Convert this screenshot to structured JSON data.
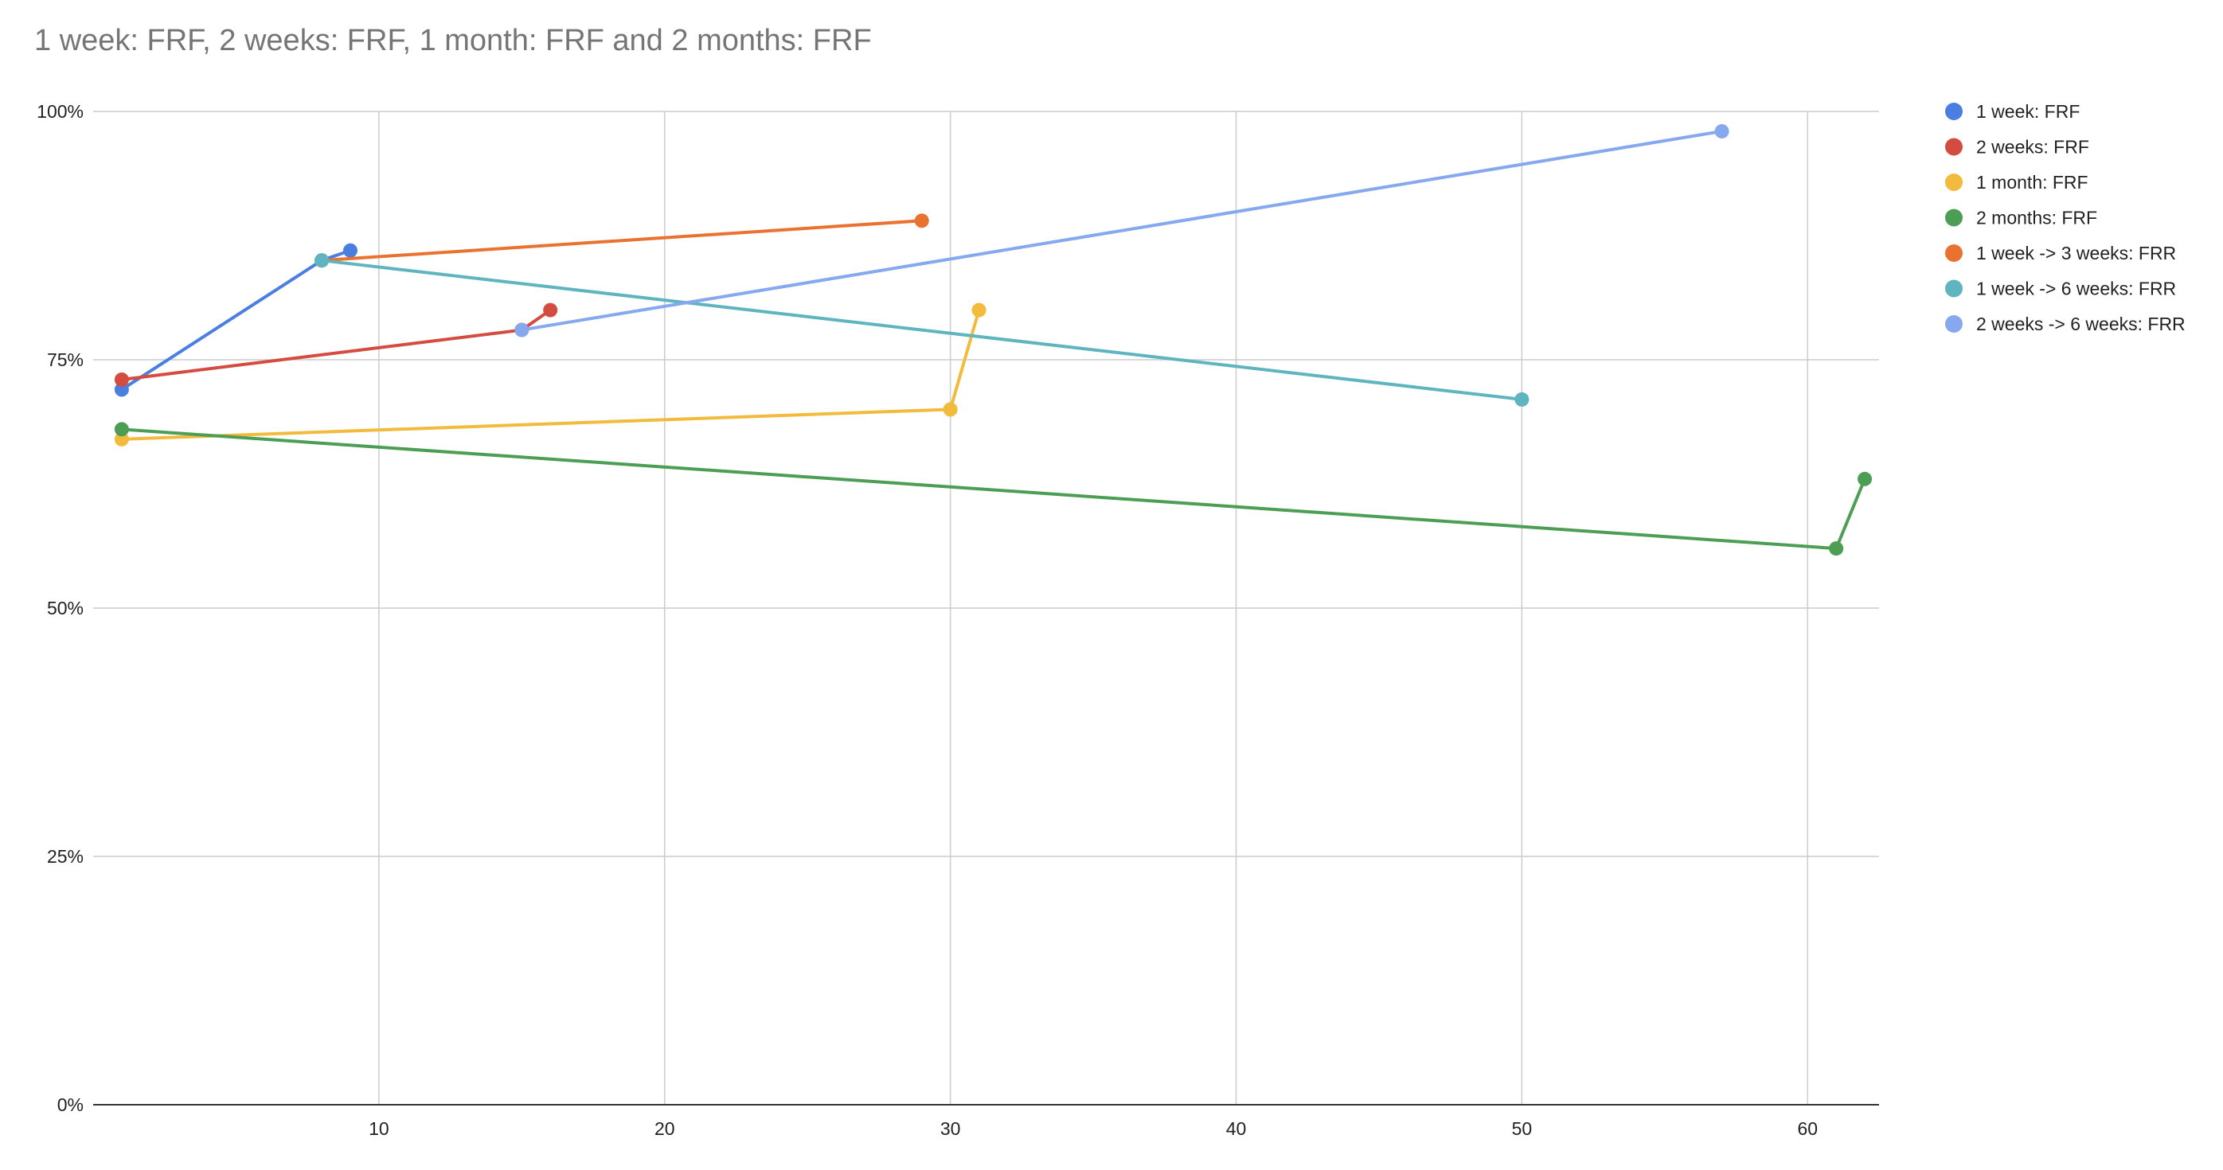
{
  "chart_data": {
    "type": "line",
    "title": "1 week: FRF, 2 weeks: FRF, 1 month: FRF and 2 months: FRF",
    "xlabel": "",
    "ylabel": "",
    "xlim": [
      0,
      62.5
    ],
    "ylim": [
      0,
      100
    ],
    "x_ticks": [
      10,
      20,
      30,
      40,
      50,
      60
    ],
    "y_ticks": [
      0,
      25,
      50,
      75,
      100
    ],
    "y_tick_labels": [
      "0%",
      "25%",
      "50%",
      "75%",
      "100%"
    ],
    "y_unit": "%",
    "grid": true,
    "legend_position": "right",
    "series": [
      {
        "name": "1 week: FRF",
        "color": "#4a7ee0",
        "points": [
          [
            1,
            72
          ],
          [
            8,
            85
          ],
          [
            9,
            86
          ]
        ]
      },
      {
        "name": "2 weeks: FRF",
        "color": "#d34c3f",
        "points": [
          [
            1,
            73
          ],
          [
            15,
            78
          ],
          [
            16,
            80
          ]
        ]
      },
      {
        "name": "1 month: FRF",
        "color": "#f2bb3c",
        "points": [
          [
            1,
            67
          ],
          [
            30,
            70
          ],
          [
            31,
            80
          ]
        ]
      },
      {
        "name": "2 months: FRF",
        "color": "#4d9e55",
        "points": [
          [
            1,
            68
          ],
          [
            61,
            56
          ],
          [
            62,
            63
          ]
        ]
      },
      {
        "name": "1 week -> 3 weeks: FRR",
        "color": "#ea7230",
        "points": [
          [
            8,
            85
          ],
          [
            29,
            89
          ]
        ]
      },
      {
        "name": "1 week -> 6 weeks: FRR",
        "color": "#5fb5bf",
        "points": [
          [
            8,
            85
          ],
          [
            50,
            71
          ]
        ]
      },
      {
        "name": "2 weeks -> 6 weeks: FRR",
        "color": "#86a8ef",
        "points": [
          [
            15,
            78
          ],
          [
            57,
            98
          ]
        ]
      }
    ]
  }
}
